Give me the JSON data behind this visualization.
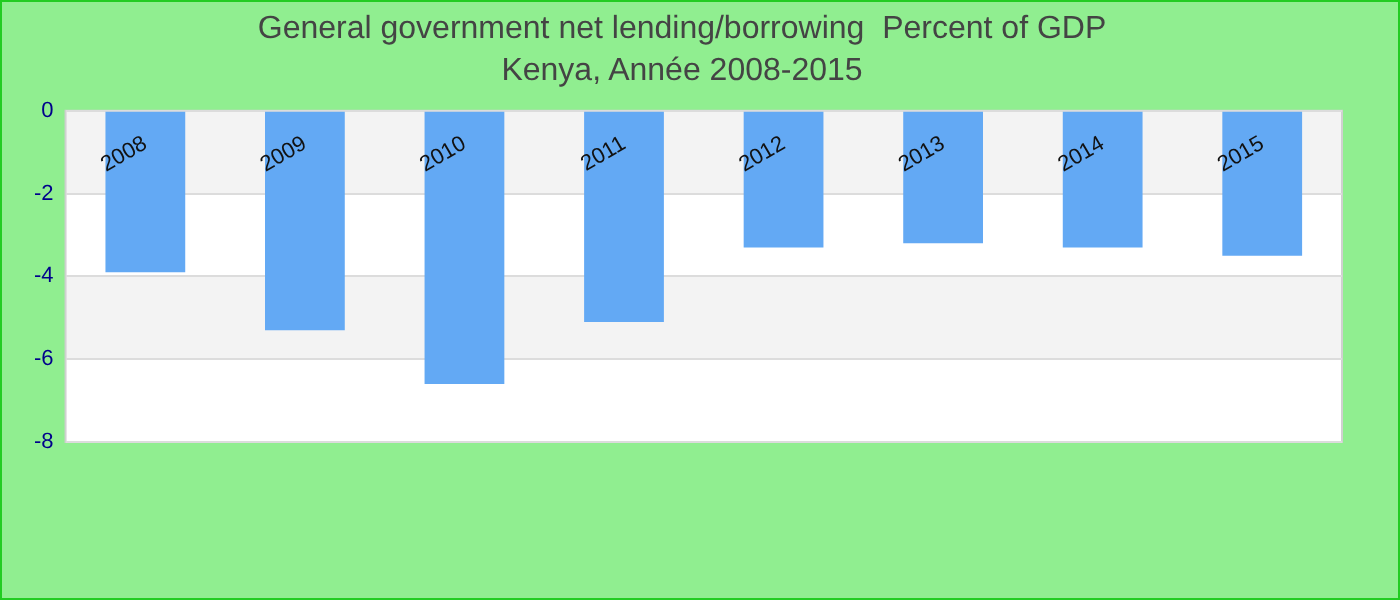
{
  "chart_data": {
    "type": "bar",
    "title": "General government net lending/borrowing  Percent of GDP",
    "subtitle": "Kenya, Année 2008-2015",
    "categories": [
      "2008",
      "2009",
      "2010",
      "2011",
      "2012",
      "2013",
      "2014",
      "2015"
    ],
    "values": [
      -3.9,
      -5.3,
      -6.6,
      -5.1,
      -3.3,
      -3.2,
      -3.3,
      -3.5
    ],
    "color": "#63a9f4",
    "ylim": [
      -8,
      0
    ],
    "yticks": [
      -8,
      -6,
      -4,
      -2,
      0
    ],
    "grid": "y"
  }
}
